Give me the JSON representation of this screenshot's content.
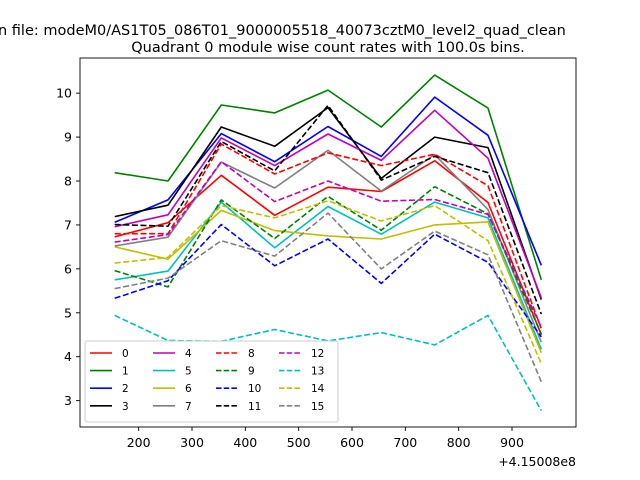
{
  "chart_data": {
    "type": "line",
    "suptitle": "n file: modeM0/AS1T05_086T01_9000005518_40073cztM0_level2_quad_clean",
    "title": "Quadrant 0 module wise count rates with 100.0s bins.",
    "xlabel": "",
    "ylabel": "",
    "x_offset_label": "+4.15008e8",
    "x": [
      155,
      255,
      355,
      455,
      555,
      655,
      755,
      855,
      955
    ],
    "xlim": [
      90,
      1020
    ],
    "ylim": [
      2.4,
      10.8
    ],
    "xticks": [
      200,
      300,
      400,
      500,
      600,
      700,
      800,
      900
    ],
    "yticks": [
      3,
      4,
      5,
      6,
      7,
      8,
      9,
      10
    ],
    "legend": {
      "location": "lower-left",
      "columns": 4
    },
    "series": [
      {
        "name": "0",
        "color": "#ff0000",
        "style": "solid",
        "values": [
          6.73,
          7.05,
          8.13,
          7.22,
          7.86,
          7.76,
          8.46,
          7.51,
          4.5
        ]
      },
      {
        "name": "1",
        "color": "#008000",
        "style": "solid",
        "values": [
          8.19,
          8.0,
          9.73,
          9.55,
          10.07,
          9.23,
          10.41,
          9.66,
          5.75
        ]
      },
      {
        "name": "2",
        "color": "#0000ff",
        "style": "solid",
        "values": [
          7.06,
          7.57,
          9.08,
          8.44,
          9.24,
          8.56,
          9.91,
          9.04,
          6.08
        ]
      },
      {
        "name": "3",
        "color": "#000000",
        "style": "solid",
        "values": [
          7.19,
          7.45,
          9.23,
          8.79,
          9.67,
          8.06,
          9.0,
          8.76,
          5.3
        ]
      },
      {
        "name": "4",
        "color": "#bf00bf",
        "style": "solid",
        "values": [
          6.96,
          7.23,
          8.98,
          8.35,
          9.07,
          8.47,
          9.61,
          8.52,
          5.34
        ]
      },
      {
        "name": "5",
        "color": "#00bfbf",
        "style": "solid",
        "values": [
          5.75,
          5.95,
          7.52,
          6.48,
          7.42,
          6.79,
          7.52,
          7.16,
          4.17
        ]
      },
      {
        "name": "6",
        "color": "#bfbf00",
        "style": "solid",
        "values": [
          6.5,
          6.22,
          7.33,
          6.87,
          6.75,
          6.68,
          7.0,
          7.07,
          4.09
        ]
      },
      {
        "name": "7",
        "color": "#808080",
        "style": "solid",
        "values": [
          6.52,
          6.72,
          8.43,
          7.84,
          8.7,
          7.77,
          8.6,
          7.35,
          4.33
        ]
      },
      {
        "name": "8",
        "color": "#ff0000",
        "style": "dashed",
        "values": [
          6.8,
          6.8,
          8.84,
          8.16,
          8.64,
          8.35,
          8.61,
          7.89,
          4.64
        ]
      },
      {
        "name": "9",
        "color": "#008000",
        "style": "dashed",
        "values": [
          5.96,
          5.59,
          7.57,
          6.69,
          7.65,
          6.88,
          7.87,
          7.25,
          4.52
        ]
      },
      {
        "name": "10",
        "color": "#0000ff",
        "style": "dashed",
        "values": [
          5.33,
          5.73,
          7.01,
          6.07,
          6.68,
          5.67,
          6.79,
          6.15,
          4.45
        ]
      },
      {
        "name": "11",
        "color": "#000000",
        "style": "dashed",
        "values": [
          7.01,
          6.97,
          8.9,
          8.23,
          9.72,
          8.02,
          8.56,
          8.19,
          4.97
        ]
      },
      {
        "name": "12",
        "color": "#bf00bf",
        "style": "dashed",
        "values": [
          6.61,
          6.78,
          8.44,
          7.53,
          8.0,
          7.54,
          7.58,
          7.24,
          4.67
        ]
      },
      {
        "name": "13",
        "color": "#00bfbf",
        "style": "dashed",
        "values": [
          4.94,
          4.37,
          4.35,
          4.62,
          4.36,
          4.55,
          4.27,
          4.94,
          2.77
        ]
      },
      {
        "name": "14",
        "color": "#bfbf00",
        "style": "dashed",
        "values": [
          6.13,
          6.26,
          7.44,
          7.16,
          7.55,
          7.09,
          7.44,
          6.64,
          3.84
        ]
      },
      {
        "name": "15",
        "color": "#808080",
        "style": "dashed",
        "values": [
          5.55,
          5.79,
          6.64,
          6.29,
          7.27,
          6.0,
          6.86,
          6.32,
          3.43
        ]
      }
    ]
  }
}
